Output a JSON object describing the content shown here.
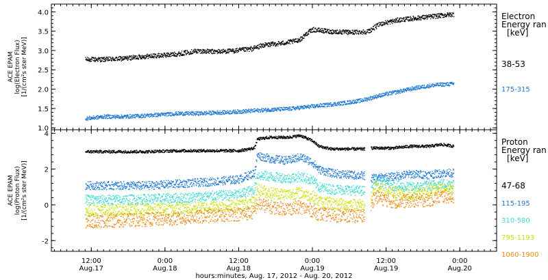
{
  "chart_data": [
    {
      "type": "scatter",
      "ylabel_lines": [
        "ACE EPAM",
        "log(Electron Flux)",
        "[1/(cm²s ster MeV)]"
      ],
      "ylim": [
        0.95,
        4.2
      ],
      "yticks": [
        1.0,
        1.5,
        2.0,
        2.5,
        3.0,
        3.5,
        4.0
      ],
      "ytick_labels": [
        "1.0",
        "1.5",
        "2.0",
        "2.5",
        "3.0",
        "3.5",
        "4.0"
      ],
      "legend_title": [
        "Electron",
        "Energy ran",
        "[keV]"
      ],
      "series": [
        {
          "name": "38-53",
          "color": "#000000",
          "points": [
            [
              0,
              2.78
            ],
            [
              6,
              2.78
            ],
            [
              12,
              2.8
            ],
            [
              18,
              2.85
            ],
            [
              24,
              2.88
            ],
            [
              30,
              2.92
            ],
            [
              36,
              3.0
            ],
            [
              42,
              2.98
            ],
            [
              48,
              3.0
            ],
            [
              54,
              3.05
            ],
            [
              58,
              3.15
            ],
            [
              64,
              3.2
            ],
            [
              68,
              3.25
            ],
            [
              70,
              3.3
            ],
            [
              72,
              3.45
            ],
            [
              74,
              3.55
            ],
            [
              80,
              3.5
            ],
            [
              86,
              3.48
            ],
            [
              92,
              3.5
            ],
            [
              96,
              3.7
            ],
            [
              102,
              3.8
            ],
            [
              108,
              3.85
            ],
            [
              114,
              3.9
            ],
            [
              120,
              3.95
            ]
          ]
        },
        {
          "name": "175-315",
          "color": "#1f77d0",
          "points": [
            [
              0,
              1.25
            ],
            [
              6,
              1.3
            ],
            [
              12,
              1.3
            ],
            [
              18,
              1.32
            ],
            [
              24,
              1.35
            ],
            [
              30,
              1.38
            ],
            [
              36,
              1.38
            ],
            [
              42,
              1.4
            ],
            [
              48,
              1.42
            ],
            [
              54,
              1.45
            ],
            [
              60,
              1.48
            ],
            [
              66,
              1.5
            ],
            [
              72,
              1.55
            ],
            [
              78,
              1.6
            ],
            [
              84,
              1.65
            ],
            [
              90,
              1.72
            ],
            [
              96,
              1.85
            ],
            [
              102,
              1.95
            ],
            [
              108,
              2.05
            ],
            [
              114,
              2.12
            ],
            [
              120,
              2.15
            ]
          ]
        }
      ]
    },
    {
      "type": "scatter",
      "ylabel_lines": [
        "ACE EPAM",
        "log(Proton Flux)",
        "[1/(cm²s ster MeV)]"
      ],
      "ylim": [
        -2.6,
        4.2
      ],
      "yticks": [
        -2,
        0,
        2,
        4
      ],
      "ytick_labels": [
        "-2",
        "0",
        "2",
        "4"
      ],
      "legend_title": [
        "Proton",
        "Energy ran",
        "[keV]"
      ],
      "series": [
        {
          "name": "47-68",
          "color": "#000000",
          "points": [
            [
              0,
              3.0
            ],
            [
              10,
              3.0
            ],
            [
              20,
              3.0
            ],
            [
              30,
              3.05
            ],
            [
              40,
              3.05
            ],
            [
              50,
              3.05
            ],
            [
              55,
              3.2
            ],
            [
              56,
              3.7
            ],
            [
              60,
              3.8
            ],
            [
              66,
              3.8
            ],
            [
              70,
              3.9
            ],
            [
              74,
              3.6
            ],
            [
              76,
              3.3
            ],
            [
              80,
              3.15
            ],
            [
              86,
              3.15
            ],
            [
              91,
              3.15
            ],
            [
              93,
              3.2
            ],
            [
              100,
              3.2
            ],
            [
              106,
              3.3
            ],
            [
              112,
              3.3
            ],
            [
              116,
              3.4
            ],
            [
              120,
              3.3
            ]
          ]
        },
        {
          "name": "115-195",
          "color": "#1f77d0",
          "points": [
            [
              0,
              1.1
            ],
            [
              10,
              1.1
            ],
            [
              20,
              1.1
            ],
            [
              30,
              1.2
            ],
            [
              40,
              1.3
            ],
            [
              50,
              1.45
            ],
            [
              55,
              1.8
            ],
            [
              56,
              2.8
            ],
            [
              60,
              2.6
            ],
            [
              66,
              2.5
            ],
            [
              70,
              2.7
            ],
            [
              74,
              2.4
            ],
            [
              76,
              2.0
            ],
            [
              80,
              1.8
            ],
            [
              86,
              1.7
            ],
            [
              91,
              1.65
            ],
            [
              93,
              1.5
            ],
            [
              100,
              1.6
            ],
            [
              106,
              1.75
            ],
            [
              112,
              1.7
            ],
            [
              116,
              1.8
            ],
            [
              120,
              1.8
            ]
          ]
        },
        {
          "name": "310-580",
          "color": "#3fd8d0",
          "points": [
            [
              0,
              0.3
            ],
            [
              10,
              0.3
            ],
            [
              20,
              0.35
            ],
            [
              30,
              0.4
            ],
            [
              40,
              0.5
            ],
            [
              50,
              0.6
            ],
            [
              55,
              0.9
            ],
            [
              56,
              1.7
            ],
            [
              60,
              1.6
            ],
            [
              66,
              1.5
            ],
            [
              70,
              1.6
            ],
            [
              74,
              1.4
            ],
            [
              76,
              1.0
            ],
            [
              80,
              0.9
            ],
            [
              86,
              0.85
            ],
            [
              91,
              0.8
            ],
            [
              93,
              0.9
            ],
            [
              94,
              1.4
            ],
            [
              100,
              1.1
            ],
            [
              106,
              1.0
            ],
            [
              112,
              1.1
            ],
            [
              116,
              1.2
            ],
            [
              120,
              1.2
            ]
          ]
        },
        {
          "name": "795-1193",
          "color": "#c8e000",
          "points": [
            [
              0,
              -0.3
            ],
            [
              10,
              -0.3
            ],
            [
              20,
              -0.25
            ],
            [
              30,
              -0.2
            ],
            [
              40,
              -0.1
            ],
            [
              50,
              0.0
            ],
            [
              55,
              0.2
            ],
            [
              56,
              0.9
            ],
            [
              60,
              0.7
            ],
            [
              66,
              0.6
            ],
            [
              70,
              0.7
            ],
            [
              74,
              0.5
            ],
            [
              76,
              0.2
            ],
            [
              80,
              0.1
            ],
            [
              86,
              0.05
            ],
            [
              91,
              0.0
            ],
            [
              93,
              0.1
            ],
            [
              94,
              1.0
            ],
            [
              100,
              0.7
            ],
            [
              106,
              0.6
            ],
            [
              112,
              0.8
            ],
            [
              116,
              0.9
            ],
            [
              120,
              0.9
            ]
          ]
        },
        {
          "name": "1060-1900",
          "color": "#e88a10",
          "points": [
            [
              0,
              -0.9
            ],
            [
              10,
              -0.85
            ],
            [
              20,
              -0.8
            ],
            [
              30,
              -0.75
            ],
            [
              40,
              -0.6
            ],
            [
              50,
              -0.5
            ],
            [
              55,
              -0.4
            ],
            [
              56,
              0.1
            ],
            [
              60,
              -0.1
            ],
            [
              66,
              -0.2
            ],
            [
              70,
              -0.1
            ],
            [
              74,
              -0.3
            ],
            [
              76,
              -0.5
            ],
            [
              80,
              -0.55
            ],
            [
              86,
              -0.6
            ],
            [
              91,
              -0.6
            ],
            [
              93,
              -0.2
            ],
            [
              94,
              0.5
            ],
            [
              100,
              0.2
            ],
            [
              106,
              0.25
            ],
            [
              112,
              0.3
            ],
            [
              116,
              0.5
            ],
            [
              120,
              0.5
            ]
          ]
        }
      ]
    }
  ],
  "x_axis": {
    "xlim": [
      -11,
      134
    ],
    "ticks": [
      {
        "t": 1,
        "time": "12:00",
        "date": "Aug.17"
      },
      {
        "t": 13,
        "time": "0:00",
        "date": "Aug.18"
      },
      {
        "t": 25,
        "time": "12:00",
        "date": "Aug.18"
      },
      {
        "t": 37,
        "time": "0:00",
        "date": "Aug.19"
      },
      {
        "t": 49,
        "time": "12:00",
        "date": "Aug.19"
      },
      {
        "t": 61,
        "time": "0:00",
        "date": "Aug.20"
      }
    ],
    "xlabel": "hours:minutes, Aug. 17, 2012 - Aug. 20, 2012"
  }
}
